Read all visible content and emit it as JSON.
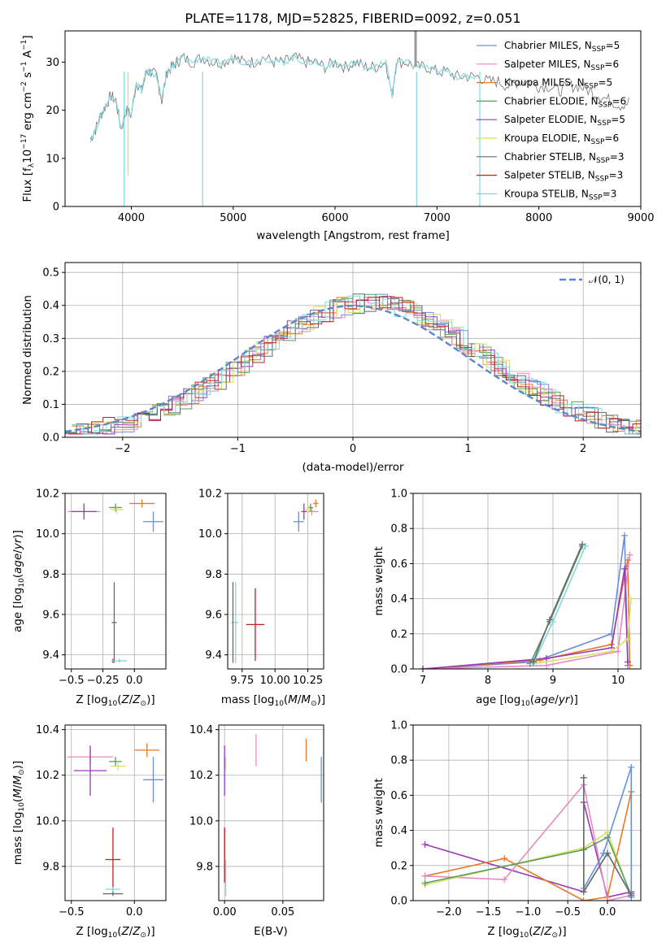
{
  "title": "PLATE=1178, MJD=52825, FIBERID=0092, z=0.051",
  "colors": {
    "chabrier_miles": "#6a8fd8",
    "salpeter_miles": "#e88ac0",
    "kroupa_miles": "#e87a2a",
    "chabrier_elodie": "#5a9a5a",
    "salpeter_elodie": "#9a3ab8",
    "kroupa_elodie": "#d8e060",
    "chabrier_stelib": "#6a6a6a",
    "salpeter_stelib": "#c02020",
    "kroupa_stelib": "#80d8e0"
  },
  "chart_data": [
    {
      "id": "spectrum",
      "type": "line",
      "xlabel": "wavelength [Angstrom, rest frame]",
      "ylabel": "Flux [f_λ10^-17 erg cm^-2 s^-1 A^-1]",
      "xlim": [
        3350,
        9000
      ],
      "ylim": [
        0,
        36.5
      ],
      "xticks": [
        4000,
        5000,
        6000,
        7000,
        8000,
        9000
      ],
      "yticks": [
        0,
        10,
        20,
        30
      ],
      "legend_position": "top-right",
      "legend": [
        {
          "label": "Chabrier MILES, N_SSP=5",
          "text": "Chabrier MILES, N",
          "n": "5",
          "color_key": "chabrier_miles"
        },
        {
          "label": "Salpeter MILES, N_SSP=6",
          "text": "Salpeter MILES, N",
          "n": "6",
          "color_key": "salpeter_miles"
        },
        {
          "label": "Kroupa MILES, N_SSP=5",
          "text": "Kroupa MILES, N",
          "n": "5",
          "color_key": "kroupa_miles"
        },
        {
          "label": "Chabrier ELODIE, N_SSP=6",
          "text": "Chabrier ELODIE, N",
          "n": "6",
          "color_key": "chabrier_elodie"
        },
        {
          "label": "Salpeter ELODIE, N_SSP=5",
          "text": "Salpeter ELODIE, N",
          "n": "5",
          "color_key": "salpeter_elodie"
        },
        {
          "label": "Kroupa ELODIE, N_SSP=6",
          "text": "Kroupa ELODIE, N",
          "n": "6",
          "color_key": "kroupa_elodie"
        },
        {
          "label": "Chabrier STELIB, N_SSP=3",
          "text": "Chabrier STELIB, N",
          "n": "3",
          "color_key": "chabrier_stelib"
        },
        {
          "label": "Salpeter STELIB, N_SSP=3",
          "text": "Salpeter STELIB, N",
          "n": "3",
          "color_key": "salpeter_stelib"
        },
        {
          "label": "Kroupa STELIB, N_SSP=3",
          "text": "Kroupa STELIB, N",
          "n": "3",
          "color_key": "kroupa_stelib"
        }
      ],
      "series": [
        {
          "name": "observed",
          "color_key": "chabrier_stelib",
          "x": [
            3600,
            3650,
            3700,
            3750,
            3800,
            3850,
            3900,
            3950,
            4000,
            4050,
            4100,
            4150,
            4200,
            4250,
            4300,
            4350,
            4400,
            4450,
            4500,
            4600,
            4700,
            4800,
            4900,
            5000,
            5100,
            5200,
            5300,
            5400,
            5500,
            5600,
            5700,
            5800,
            5900,
            6000,
            6100,
            6200,
            6300,
            6400,
            6500,
            6560,
            6600,
            6700,
            6800,
            6900,
            7000,
            7100,
            7200,
            7300,
            7400,
            7500,
            7600,
            7700,
            7800,
            7900,
            8000,
            8100,
            8200,
            8300,
            8400,
            8500,
            8600,
            8700,
            8800,
            8900
          ],
          "y": [
            14,
            16,
            19,
            21,
            23,
            22,
            16,
            20,
            19,
            26,
            24,
            28,
            28,
            27,
            22,
            28,
            29,
            30,
            31,
            30,
            31,
            30,
            30,
            31,
            30,
            30,
            31,
            30,
            30,
            31,
            30,
            30,
            29,
            30,
            29,
            30,
            29,
            29,
            30,
            23,
            30,
            30,
            29,
            29,
            28,
            28,
            27,
            27,
            27,
            26,
            26,
            25,
            26,
            26,
            25,
            25,
            24,
            25,
            25,
            24,
            23,
            22,
            21,
            22
          ]
        },
        {
          "name": "model",
          "color_key": "kroupa_stelib",
          "x": [
            3600,
            3650,
            3700,
            3750,
            3800,
            3850,
            3900,
            3950,
            4000,
            4050,
            4100,
            4150,
            4200,
            4250,
            4300,
            4350,
            4400,
            4450,
            4500,
            4600,
            4700,
            4800,
            4900,
            5000,
            5100,
            5200,
            5300,
            5400,
            5500,
            5600,
            5700,
            5800,
            5900,
            6000,
            6100,
            6200,
            6300,
            6400,
            6500,
            6560,
            6600,
            6700,
            6800,
            6900,
            7000,
            7100,
            7200,
            7300,
            7400
          ],
          "y": [
            14,
            16,
            19,
            21,
            23,
            22,
            16,
            20,
            19,
            26,
            24,
            28,
            28,
            27,
            22,
            28,
            29,
            30,
            31,
            30,
            31,
            30,
            30,
            31,
            30,
            30,
            31,
            30,
            30,
            31,
            30,
            30,
            29,
            30,
            29,
            30,
            29,
            29,
            30,
            23,
            30,
            30,
            29,
            29,
            28,
            28,
            27,
            27,
            27
          ]
        }
      ]
    },
    {
      "id": "residuals",
      "type": "line",
      "xlabel": "(data-model)/error",
      "ylabel": "Normed distribution",
      "xlim": [
        -2.5,
        2.5
      ],
      "ylim": [
        0,
        0.53
      ],
      "xticks": [
        -2,
        -1,
        0,
        1,
        2
      ],
      "yticks": [
        0.0,
        0.1,
        0.2,
        0.3,
        0.4,
        0.5
      ],
      "grid": true,
      "legend_position": "top-right",
      "gaussian_label": "𝒩(0, 1)"
    },
    {
      "id": "age_vs_Z",
      "type": "scatter",
      "xlabel": "Z [log10(Z/Z⊙)]",
      "ylabel": "age [log10(age/yr)]",
      "xlim": [
        -0.55,
        0.25
      ],
      "ylim": [
        9.33,
        10.2
      ],
      "xticks": [
        -0.5,
        -0.25,
        0.0
      ],
      "xticklabels": [
        "−0.5",
        "−0.25",
        "0.0"
      ],
      "yticks": [
        9.4,
        9.6,
        9.8,
        10.0,
        10.2
      ],
      "grid": true,
      "points": [
        {
          "color_key": "chabrier_miles",
          "x": 0.15,
          "xerr": 0.08,
          "y": 10.06,
          "yerr": 0.05
        },
        {
          "color_key": "salpeter_miles",
          "x": -0.4,
          "xerr": 0.13,
          "y": 10.11,
          "yerr": 0.02
        },
        {
          "color_key": "kroupa_miles",
          "x": 0.06,
          "xerr": 0.1,
          "y": 10.15,
          "yerr": 0.02
        },
        {
          "color_key": "chabrier_elodie",
          "x": -0.15,
          "xerr": 0.05,
          "y": 10.13,
          "yerr": 0.02
        },
        {
          "color_key": "salpeter_elodie",
          "x": -0.4,
          "xerr": 0.1,
          "y": 10.11,
          "yerr": 0.04
        },
        {
          "color_key": "kroupa_elodie",
          "x": -0.14,
          "xerr": 0.05,
          "y": 10.12,
          "yerr": 0.02
        },
        {
          "color_key": "chabrier_stelib",
          "x": -0.16,
          "xerr": 0.02,
          "y": 9.56,
          "yerr": 0.2
        },
        {
          "color_key": "salpeter_stelib",
          "x": -0.17,
          "xerr": 0.01,
          "y": 9.37,
          "yerr": 0.01
        },
        {
          "color_key": "kroupa_stelib",
          "x": -0.12,
          "xerr": 0.06,
          "y": 9.37,
          "yerr": 0.01
        }
      ]
    },
    {
      "id": "age_vs_mass",
      "type": "scatter",
      "xlabel": "mass [log10(M/M⊙)]",
      "ylabel": "",
      "xlim": [
        9.64,
        10.37
      ],
      "ylim": [
        9.33,
        10.2
      ],
      "xticks": [
        9.75,
        10.0,
        10.25
      ],
      "xticklabels": [
        "9.75",
        "10.00",
        "10.25"
      ],
      "yticks": [
        9.4,
        9.6,
        9.8,
        10.0,
        10.2
      ],
      "grid": true,
      "points": [
        {
          "color_key": "chabrier_miles",
          "x": 10.18,
          "xerr": 0.04,
          "y": 10.06,
          "yerr": 0.05
        },
        {
          "color_key": "salpeter_miles",
          "x": 10.28,
          "xerr": 0.05,
          "y": 10.11,
          "yerr": 0.02
        },
        {
          "color_key": "kroupa_miles",
          "x": 10.31,
          "xerr": 0.02,
          "y": 10.15,
          "yerr": 0.02
        },
        {
          "color_key": "chabrier_elodie",
          "x": 10.27,
          "xerr": 0.02,
          "y": 10.13,
          "yerr": 0.02
        },
        {
          "color_key": "salpeter_elodie",
          "x": 10.22,
          "xerr": 0.02,
          "y": 10.11,
          "yerr": 0.04
        },
        {
          "color_key": "kroupa_elodie",
          "x": 10.25,
          "xerr": 0.02,
          "y": 10.12,
          "yerr": 0.02
        },
        {
          "color_key": "chabrier_stelib",
          "x": 9.68,
          "xerr": 0.01,
          "y": 9.56,
          "yerr": 0.2
        },
        {
          "color_key": "salpeter_stelib",
          "x": 9.85,
          "xerr": 0.07,
          "y": 9.55,
          "yerr": 0.18
        },
        {
          "color_key": "kroupa_stelib",
          "x": 9.7,
          "xerr": 0.02,
          "y": 9.56,
          "yerr": 0.2
        }
      ]
    },
    {
      "id": "mass_weight_vs_age",
      "type": "line",
      "xlabel": "age [log10(age/yr)]",
      "ylabel": "mass weight",
      "xlim": [
        6.85,
        10.35
      ],
      "ylim": [
        0,
        1.0
      ],
      "xticks": [
        7,
        8,
        9,
        10
      ],
      "yticks": [
        0.0,
        0.2,
        0.4,
        0.6,
        0.8,
        1.0
      ],
      "grid": true,
      "series": [
        {
          "color_key": "chabrier_miles",
          "x": [
            7.0,
            8.7,
            9.9,
            10.1,
            10.15
          ],
          "y": [
            0.0,
            0.04,
            0.2,
            0.76,
            0.02
          ]
        },
        {
          "color_key": "kroupa_miles",
          "x": [
            7.0,
            8.8,
            9.9,
            10.15,
            10.18
          ],
          "y": [
            0.0,
            0.05,
            0.14,
            0.62,
            0.02
          ]
        },
        {
          "color_key": "salpeter_miles",
          "x": [
            7.0,
            8.9,
            10.0,
            10.18
          ],
          "y": [
            0.0,
            0.02,
            0.1,
            0.65
          ]
        },
        {
          "color_key": "salpeter_elodie",
          "x": [
            7.0,
            8.9,
            9.9,
            10.1,
            10.15
          ],
          "y": [
            0.0,
            0.06,
            0.12,
            0.57,
            0.04
          ]
        },
        {
          "color_key": "kroupa_elodie",
          "x": [
            8.7,
            9.9,
            10.15,
            10.2
          ],
          "y": [
            0.03,
            0.1,
            0.17,
            0.4
          ]
        },
        {
          "color_key": "chabrier_elodie",
          "x": [
            8.65,
            8.95,
            9.45
          ],
          "y": [
            0.03,
            0.27,
            0.7
          ]
        },
        {
          "color_key": "kroupa_stelib",
          "x": [
            8.7,
            9.0,
            9.5
          ],
          "y": [
            0.03,
            0.27,
            0.7
          ]
        },
        {
          "color_key": "chabrier_stelib",
          "x": [
            8.7,
            8.95,
            9.45
          ],
          "y": [
            0.04,
            0.28,
            0.71
          ]
        }
      ]
    },
    {
      "id": "mass_vs_Z",
      "type": "scatter",
      "xlabel": "Z [log10(Z/Z⊙)]",
      "ylabel": "mass [log10(M/M⊙)]",
      "xlim": [
        -0.55,
        0.25
      ],
      "ylim": [
        9.65,
        10.42
      ],
      "xticks": [
        -0.5,
        0.0
      ],
      "xticklabels": [
        "−0.5",
        "0.0"
      ],
      "yticks": [
        9.8,
        10.0,
        10.2,
        10.4
      ],
      "grid": true,
      "points": [
        {
          "color_key": "chabrier_miles",
          "x": 0.15,
          "xerr": 0.08,
          "y": 10.18,
          "yerr": 0.1
        },
        {
          "color_key": "salpeter_miles",
          "x": -0.35,
          "xerr": 0.18,
          "y": 10.28,
          "yerr": 0.04
        },
        {
          "color_key": "kroupa_miles",
          "x": 0.1,
          "xerr": 0.1,
          "y": 10.31,
          "yerr": 0.03
        },
        {
          "color_key": "chabrier_elodie",
          "x": -0.15,
          "xerr": 0.05,
          "y": 10.26,
          "yerr": 0.02
        },
        {
          "color_key": "salpeter_elodie",
          "x": -0.35,
          "xerr": 0.13,
          "y": 10.22,
          "yerr": 0.11
        },
        {
          "color_key": "kroupa_elodie",
          "x": -0.13,
          "xerr": 0.06,
          "y": 10.24,
          "yerr": 0.02
        },
        {
          "color_key": "chabrier_stelib",
          "x": -0.17,
          "xerr": 0.08,
          "y": 9.68,
          "yerr": 0.01
        },
        {
          "color_key": "salpeter_stelib",
          "x": -0.17,
          "xerr": 0.06,
          "y": 9.83,
          "yerr": 0.14
        },
        {
          "color_key": "kroupa_stelib",
          "x": -0.17,
          "xerr": 0.06,
          "y": 9.7,
          "yerr": 0.01
        }
      ]
    },
    {
      "id": "mass_vs_ebv",
      "type": "scatter",
      "xlabel": "E(B-V)",
      "ylabel": "",
      "xlim": [
        -0.005,
        0.085
      ],
      "ylim": [
        9.65,
        10.42
      ],
      "xticks": [
        0.0,
        0.05
      ],
      "xticklabels": [
        "0.00",
        "0.05"
      ],
      "yticks": [
        9.8,
        10.0,
        10.2,
        10.4
      ],
      "grid": true,
      "points": [
        {
          "color_key": "chabrier_miles",
          "x": 0.083,
          "xerr": 0,
          "y": 10.18,
          "yerr": 0.1
        },
        {
          "color_key": "salpeter_miles",
          "x": 0.027,
          "xerr": 0,
          "y": 10.31,
          "yerr": 0.07
        },
        {
          "color_key": "kroupa_miles",
          "x": 0.07,
          "xerr": 0,
          "y": 10.31,
          "yerr": 0.05
        },
        {
          "color_key": "chabrier_elodie",
          "x": 0.0,
          "xerr": 0,
          "y": 10.26,
          "yerr": 0.03
        },
        {
          "color_key": "salpeter_elodie",
          "x": 0.0,
          "xerr": 0,
          "y": 10.22,
          "yerr": 0.11
        },
        {
          "color_key": "kroupa_elodie",
          "x": 0.001,
          "xerr": 0,
          "y": 10.25,
          "yerr": 0.03
        },
        {
          "color_key": "chabrier_stelib",
          "x": 0.0,
          "xerr": 0,
          "y": 9.85,
          "yerr": 0.12
        },
        {
          "color_key": "salpeter_stelib",
          "x": 0.0,
          "xerr": 0,
          "y": 9.85,
          "yerr": 0.12
        },
        {
          "color_key": "kroupa_stelib",
          "x": 0.001,
          "xerr": 0,
          "y": 9.75,
          "yerr": 0.08
        }
      ]
    },
    {
      "id": "mass_weight_vs_Z",
      "type": "line",
      "xlabel": "Z [log10(Z/Z⊙)]",
      "ylabel": "mass weight",
      "xlim": [
        -2.45,
        0.42
      ],
      "ylim": [
        0,
        1.0
      ],
      "xticks": [
        -2.0,
        -1.5,
        -1.0,
        -0.5,
        0.0
      ],
      "xticklabels": [
        "−2.0",
        "−1.5",
        "−1.0",
        "−0.5",
        "0.0"
      ],
      "yticks": [
        0.0,
        0.2,
        0.4,
        0.6,
        0.8,
        1.0
      ],
      "grid": true,
      "series": [
        {
          "color_key": "salpeter_elodie",
          "x": [
            -2.3,
            -0.3,
            -0.3,
            0.0,
            0.3,
            0.3
          ],
          "y": [
            0.32,
            0.05,
            0.56,
            0.02,
            0.05,
            0.04
          ]
        },
        {
          "color_key": "kroupa_miles",
          "x": [
            -2.3,
            -1.3,
            -0.3,
            0.0,
            0.3
          ],
          "y": [
            0.14,
            0.24,
            0.0,
            0.02,
            0.62
          ]
        },
        {
          "color_key": "salpeter_miles",
          "x": [
            -2.3,
            -1.3,
            -0.3,
            0.0,
            0.3
          ],
          "y": [
            0.14,
            0.12,
            0.66,
            0.0,
            0.03
          ]
        },
        {
          "color_key": "kroupa_elodie",
          "x": [
            -2.3,
            -0.3,
            0.0,
            0.3
          ],
          "y": [
            0.09,
            0.3,
            0.39,
            0.02
          ]
        },
        {
          "color_key": "chabrier_elodie",
          "x": [
            -2.3,
            -0.3,
            0.0,
            0.3
          ],
          "y": [
            0.1,
            0.29,
            0.36,
            0.03
          ]
        },
        {
          "color_key": "chabrier_miles",
          "x": [
            -0.3,
            -0.05,
            0.3,
            0.3
          ],
          "y": [
            0.07,
            0.27,
            0.76,
            0.02
          ]
        },
        {
          "color_key": "kroupa_stelib",
          "x": [
            -0.3,
            -0.3,
            0.0,
            0.3
          ],
          "y": [
            0.7,
            0.05,
            0.27,
            0.03
          ]
        },
        {
          "color_key": "chabrier_stelib",
          "x": [
            -0.3,
            -0.3,
            0.0,
            0.3
          ],
          "y": [
            0.7,
            0.05,
            0.27,
            0.03
          ]
        }
      ]
    }
  ]
}
